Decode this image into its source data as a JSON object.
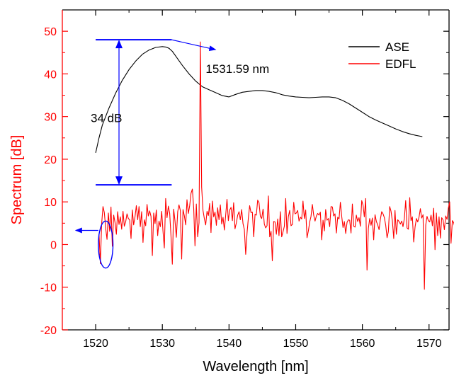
{
  "colors": {
    "ase": "#000000",
    "edfl": "#ff0000",
    "annotation": "#0000ff",
    "y_axis": "#ff0000",
    "x_axis": "#000000"
  },
  "chart_data": {
    "type": "line",
    "xlabel": "Wavelength [nm]",
    "ylabel": "Spectrum [dB]",
    "xlim": [
      1515,
      1573
    ],
    "ylim": [
      -20,
      55
    ],
    "x_ticks": [
      1520,
      1530,
      1540,
      1550,
      1560,
      1570
    ],
    "y_ticks": [
      -20,
      -10,
      0,
      10,
      20,
      30,
      40,
      50
    ],
    "grid": false,
    "legend_position": "top-right",
    "series": [
      {
        "name": "ASE",
        "color": "#000000",
        "x": [
          1520,
          1520.5,
          1521,
          1522,
          1523,
          1524,
          1525,
          1526,
          1527,
          1528,
          1529,
          1530,
          1530.5,
          1531,
          1531.5,
          1532,
          1533,
          1534,
          1535,
          1536,
          1537,
          1538,
          1539,
          1540,
          1541,
          1542,
          1543,
          1544,
          1545,
          1546,
          1547,
          1548,
          1549,
          1550,
          1551,
          1552,
          1553,
          1554,
          1555,
          1556,
          1557,
          1558,
          1559,
          1560,
          1561,
          1562,
          1563,
          1564,
          1565,
          1566,
          1567,
          1568,
          1569
        ],
        "y": [
          21.5,
          25,
          28,
          32,
          35.5,
          38.5,
          41,
          43,
          44.6,
          45.6,
          46.2,
          46.4,
          46.3,
          46,
          45.3,
          44.2,
          42,
          40,
          38.3,
          37,
          36.3,
          35.6,
          34.9,
          34.6,
          35.2,
          35.7,
          35.9,
          36.1,
          36.1,
          35.9,
          35.6,
          35.1,
          34.8,
          34.6,
          34.5,
          34.4,
          34.5,
          34.6,
          34.6,
          34.4,
          33.8,
          33,
          32,
          31,
          30,
          29.2,
          28.5,
          27.8,
          27.1,
          26.5,
          26,
          25.6,
          25.3
        ]
      },
      {
        "name": "EDFL",
        "color": "#ff0000",
        "x_start": 1520.5,
        "x_step": 0.2,
        "y": [
          2.5,
          -4.5,
          4.8,
          8.9,
          7.5,
          3.8,
          1.2,
          7.4,
          3.1,
          8.8,
          -0.4,
          6.9,
          5.2,
          2.4,
          7.7,
          4.7,
          6.5,
          3.6,
          7.8,
          4.3,
          5.3,
          7.2,
          6.1,
          5.8,
          1.4,
          8.1,
          4.6,
          6.5,
          9.1,
          5.8,
          8.9,
          4.2,
          7.7,
          0.5,
          5.8,
          4.4,
          9.4,
          6.7,
          7.9,
          6.6,
          -2.6,
          7.4,
          4.9,
          8.1,
          2.1,
          5.5,
          4.2,
          7.8,
          3.2,
          -0.8,
          10.8,
          6.3,
          9.0,
          7.3,
          2.1,
          -4.6,
          8.3,
          5.5,
          1.7,
          7.7,
          9.3,
          8.0,
          -3.4,
          8.2,
          6.7,
          4.6,
          10.5,
          7.3,
          9.1,
          12,
          13,
          8.5,
          -0.3,
          9.5,
          1.8,
          5.1,
          47.5,
          13.5,
          8,
          6.1,
          4.6,
          7.8,
          6.8,
          9.6,
          2.8,
          10.2,
          6.5,
          7.6,
          4.5,
          8.6,
          5.8,
          9.3,
          4.8,
          6.4,
          3.4,
          6.8,
          10.6,
          5.6,
          8.1,
          8.7,
          5.6,
          9.8,
          3.7,
          5.1,
          6.9,
          7.7,
          5.8,
          8.2,
          4.9,
          3.5,
          -2.3,
          2.7,
          6.1,
          9.1,
          7.5,
          7.6,
          1.8,
          7.1,
          6.9,
          10.4,
          9.8,
          6.6,
          6.1,
          8.3,
          4.8,
          3.9,
          4.4,
          11.4,
          1.8,
          3.1,
          -3.8,
          5.4,
          5.3,
          2.4,
          6.0,
          2.1,
          7.7,
          1.8,
          3.0,
          4.3,
          10.8,
          2.6,
          6.5,
          8.0,
          4.4,
          4.7,
          9.9,
          7.2,
          7.4,
          8.0,
          5.5,
          6.4,
          6.0,
          10.2,
          6.1,
          8.1,
          1.6,
          3.2,
          5.3,
          6.6,
          9.4,
          6.9,
          5.5,
          6.7,
          7.3,
          6.9,
          7.6,
          1.1,
          5.7,
          3.2,
          8.2,
          5.7,
          6.1,
          4.2,
          8.9,
          8.8,
          6.7,
          7.2,
          2.7,
          6.4,
          6.0,
          9.9,
          6.7,
          4.0,
          5.4,
          2.6,
          5.2,
          5.8,
          5.7,
          2.7,
          9.5,
          4.3,
          4.1,
          6.9,
          5.4,
          6.3,
          4.3,
          10.3,
          9.2,
          6.5,
          10.8,
          -6.0,
          3.8,
          6.1,
          4.5,
          6.2,
          1.1,
          7.0,
          5.4,
          4.6,
          3.5,
          5.9,
          7.7,
          7.2,
          6.3,
          4.5,
          1.6,
          3.0,
          8.9,
          7.8,
          5.5,
          1.4,
          8.0,
          2.4,
          5.8,
          5.4,
          4.8,
          5.5,
          4.2,
          6.1,
          10.3,
          3.9,
          3.6,
          11.0,
          5.6,
          6.5,
          0.6,
          4.1,
          6.1,
          5.3,
          6.4,
          8.4,
          6.2,
          7.0,
          -10.5,
          4.6,
          6.6,
          5.6,
          5.3,
          6.9,
          4.4,
          8.5,
          -1.2,
          7.4,
          2.1,
          6.5,
          1.5,
          6.3,
          5.8,
          3.5,
          6.7,
          5.9,
          8.6,
          10.0,
          0.3,
          5.6,
          5.1,
          3.8,
          8.1,
          4.2,
          1.0,
          5.0,
          7.9,
          2.8,
          4.2,
          -3.6,
          6.6,
          6.8,
          4.9,
          -6.0,
          9.5,
          6.7,
          0.0,
          9.0,
          6.5,
          6.2,
          2.9,
          7.7,
          4.2,
          7.6,
          6.1,
          5.5,
          5.5,
          3.7,
          1.4,
          -9.0,
          5.5,
          11.2,
          8.8,
          3.4,
          1.7,
          5.5,
          8.7,
          7.1,
          3.3,
          6.4,
          11.8,
          3.8,
          6.6,
          6.2,
          1.9,
          4.3,
          7.0,
          5.4,
          6.9
        ]
      }
    ],
    "annotations": {
      "peak_label": "1531.59 nm",
      "diff_label": "34 dB",
      "peak_wavelength": 1531.59,
      "top_level": 48,
      "bottom_level": 14,
      "bracket_x_start": 1520,
      "bracket_x_end": 1531.4,
      "arrow_x": 1523.5,
      "circle_center": [
        1521.5,
        0
      ],
      "circle_radius_x": 1.1,
      "circle_radius_y": 5.5,
      "axis_arrow_to_x": 1517
    }
  }
}
